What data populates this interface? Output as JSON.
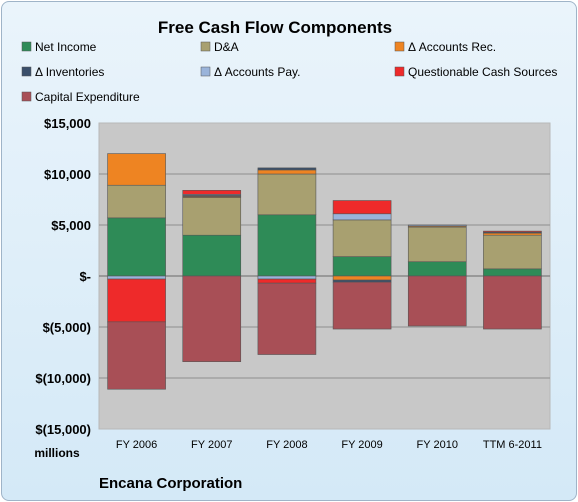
{
  "chart_data": {
    "type": "bar",
    "stacked": true,
    "title": "Free Cash Flow Components",
    "ylabel": "millions",
    "company": "Encana Corporation",
    "categories": [
      "FY 2006",
      "FY 2007",
      "FY 2008",
      "FY 2009",
      "FY 2010",
      "TTM 6-2011"
    ],
    "ylim": [
      -15000,
      15000
    ],
    "yticks": [
      15000,
      10000,
      5000,
      0,
      -5000,
      -10000,
      -15000
    ],
    "ytick_labels": [
      "$15,000",
      "$10,000",
      "$5,000",
      "$-",
      "$(5,000)",
      "$(10,000)",
      "$(15,000)"
    ],
    "grid": true,
    "legend_position": "top",
    "series": [
      {
        "name": "Net Income",
        "color": "#2e8b57",
        "values": [
          5700,
          4000,
          6000,
          1900,
          1400,
          700
        ]
      },
      {
        "name": "D&A",
        "color": "#a8a070",
        "values": [
          3200,
          3700,
          4000,
          3600,
          3400,
          3300
        ]
      },
      {
        "name": "Δ Accounts Rec.",
        "color": "#ee8422",
        "values": [
          3100,
          100,
          400,
          -400,
          100,
          200
        ]
      },
      {
        "name": "Δ Inventories",
        "color": "#3a4f6a",
        "values": [
          0,
          100,
          200,
          -200,
          0,
          100
        ]
      },
      {
        "name": "Δ Accounts Pay.",
        "color": "#9ab4da",
        "values": [
          -300,
          100,
          -300,
          600,
          100,
          0
        ]
      },
      {
        "name": "Questionable Cash Sources",
        "color": "#ee2a2a",
        "values": [
          -4200,
          400,
          -400,
          1300,
          0,
          100
        ]
      },
      {
        "name": "Capital Expenditure",
        "color": "#a84f56",
        "values": [
          -6600,
          -8400,
          -7000,
          -4600,
          -4900,
          -5200
        ]
      }
    ]
  }
}
